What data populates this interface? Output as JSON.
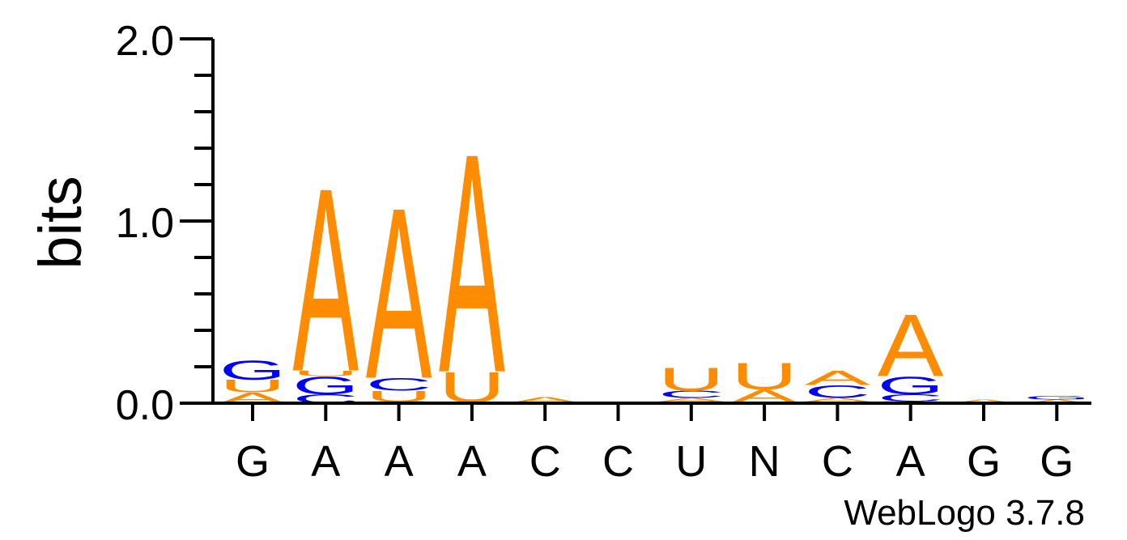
{
  "chart_data": {
    "type": "sequence-logo",
    "ylabel": "bits",
    "ylim": [
      0,
      2.0
    ],
    "y_ticks": [
      "0.0",
      "1.0",
      "2.0"
    ],
    "positions": [
      "G",
      "A",
      "A",
      "A",
      "C",
      "C",
      "U",
      "N",
      "C",
      "A",
      "G",
      "G"
    ],
    "colors": {
      "A": "#ff8c00",
      "U": "#ff8c00",
      "G": "#0000ff",
      "C": "#0000ff"
    },
    "stacks": [
      [
        {
          "letter": "A",
          "bits": 0.06
        },
        {
          "letter": "U",
          "bits": 0.07
        },
        {
          "letter": "G",
          "bits": 0.11
        }
      ],
      [
        {
          "letter": "C",
          "bits": 0.05
        },
        {
          "letter": "G",
          "bits": 0.1
        },
        {
          "letter": "U",
          "bits": 0.03
        },
        {
          "letter": "A",
          "bits": 1.03
        }
      ],
      [
        {
          "letter": "C",
          "bits": 0.01
        },
        {
          "letter": "U",
          "bits": 0.06
        },
        {
          "letter": "C",
          "bits": 0.07
        },
        {
          "letter": "A",
          "bits": 0.96
        }
      ],
      [
        {
          "letter": "C",
          "bits": 0.005
        },
        {
          "letter": "U",
          "bits": 0.17
        },
        {
          "letter": "A",
          "bits": 1.23
        }
      ],
      [
        {
          "letter": "C",
          "bits": 0.005
        },
        {
          "letter": "A",
          "bits": 0.03
        }
      ],
      [],
      [
        {
          "letter": "C",
          "bits": 0.01
        },
        {
          "letter": "A",
          "bits": 0.02
        },
        {
          "letter": "C",
          "bits": 0.04
        },
        {
          "letter": "U",
          "bits": 0.13
        }
      ],
      [
        {
          "letter": "C",
          "bits": 0.005
        },
        {
          "letter": "A",
          "bits": 0.07
        },
        {
          "letter": "U",
          "bits": 0.15
        }
      ],
      [
        {
          "letter": "U",
          "bits": 0.01
        },
        {
          "letter": "A",
          "bits": 0.02
        },
        {
          "letter": "C",
          "bits": 0.07
        },
        {
          "letter": "A",
          "bits": 0.08
        }
      ],
      [
        {
          "letter": "U",
          "bits": 0.01
        },
        {
          "letter": "C",
          "bits": 0.04
        },
        {
          "letter": "G",
          "bits": 0.1
        },
        {
          "letter": "A",
          "bits": 0.35
        }
      ],
      [
        {
          "letter": "A",
          "bits": 0.02
        }
      ],
      [
        {
          "letter": "A",
          "bits": 0.02
        },
        {
          "letter": "G",
          "bits": 0.02
        }
      ]
    ]
  },
  "footer": {
    "label": "WebLogo 3.7.8"
  }
}
